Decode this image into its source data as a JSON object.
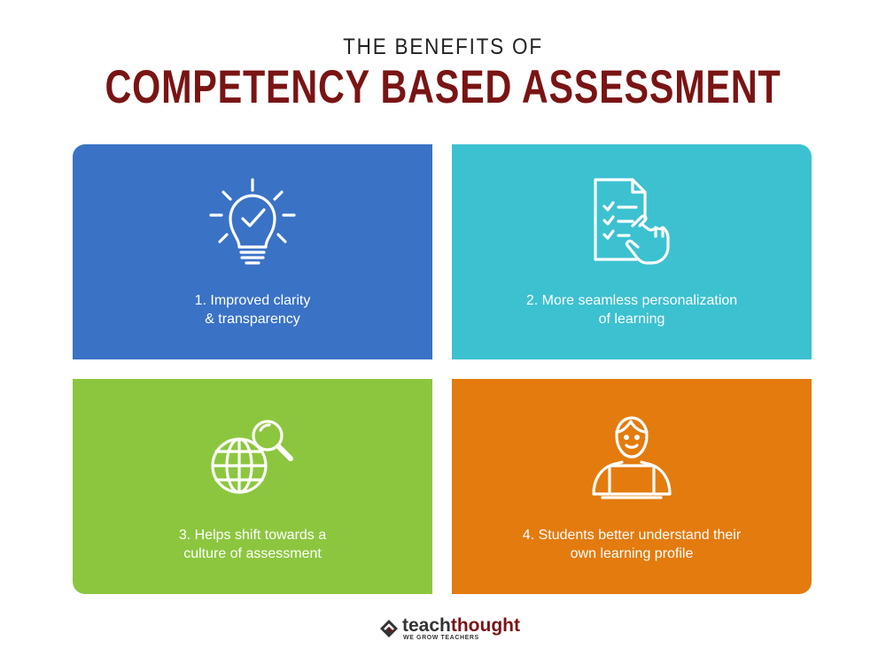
{
  "header": {
    "subtitle": "THE BENEFITS OF",
    "title": "COMPETENCY BASED ASSESSMENT"
  },
  "colors": {
    "title": "#7a1414",
    "card_1": "#3a72c6",
    "card_2": "#3cc1d0",
    "card_3": "#8cc63f",
    "card_4": "#e47b0e"
  },
  "cards": [
    {
      "icon": "lightbulb-check-icon",
      "line1": "1. Improved clarity",
      "line2": "& transparency"
    },
    {
      "icon": "checklist-hand-icon",
      "line1": "2. More seamless personalization",
      "line2": "of learning"
    },
    {
      "icon": "globe-search-icon",
      "line1": "3. Helps shift towards a",
      "line2": "culture of assessment"
    },
    {
      "icon": "student-laptop-icon",
      "line1": "4. Students better understand their",
      "line2": "own learning profile"
    }
  ],
  "logo": {
    "word_part1": "teach",
    "word_part2": "thought",
    "tagline": "WE GROW TEACHERS"
  }
}
